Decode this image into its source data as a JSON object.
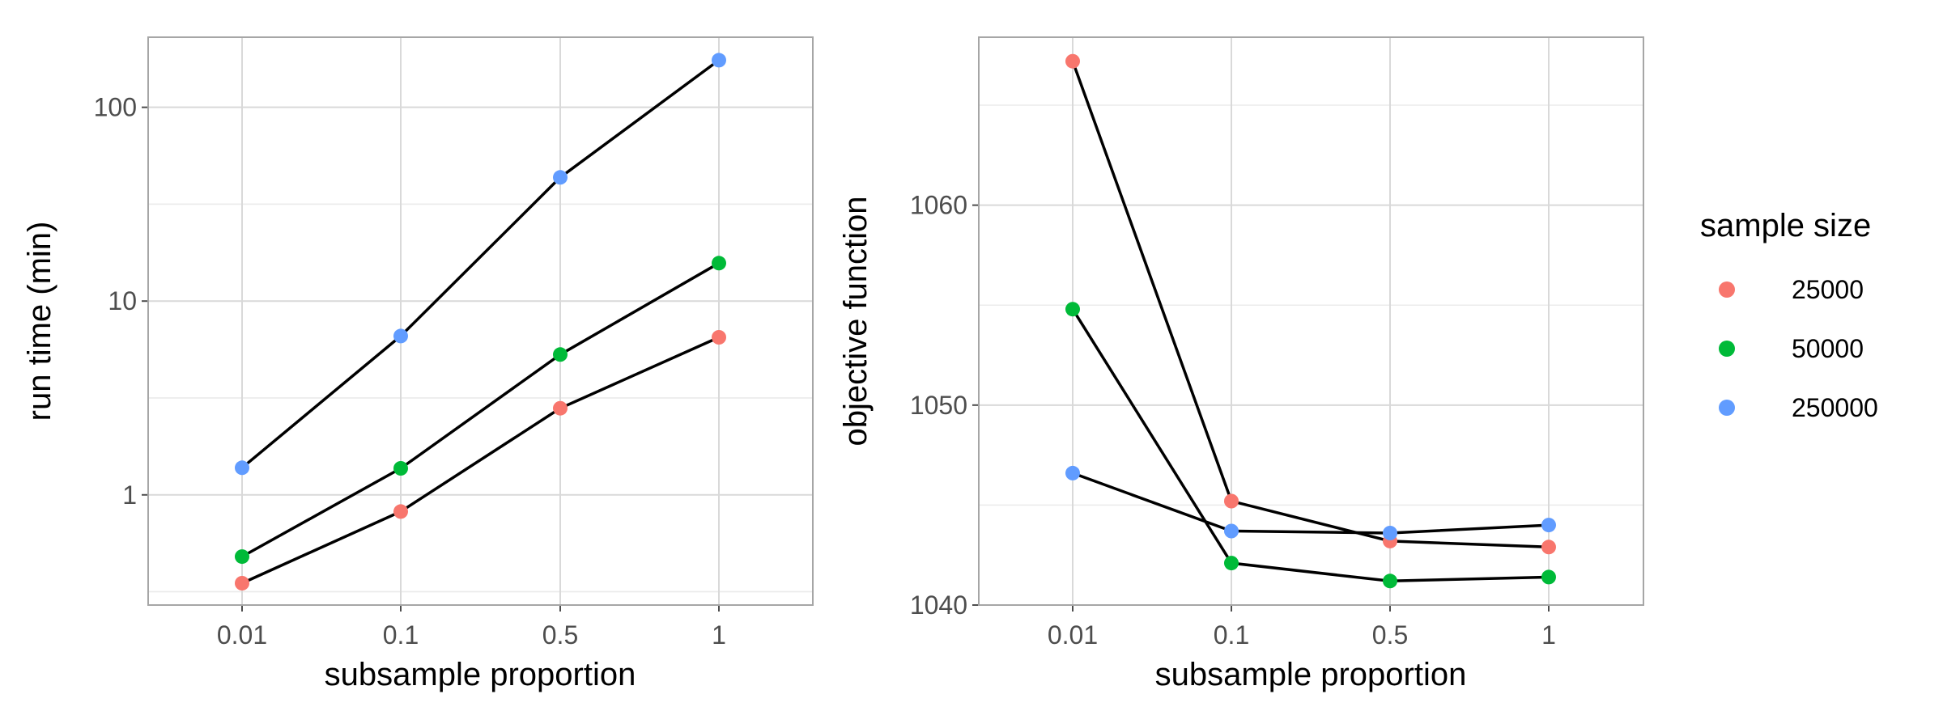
{
  "chart_data": [
    {
      "type": "line",
      "xlabel": "subsample proportion",
      "ylabel": "run time (min)",
      "y_scale": "log10",
      "ylim": [
        0.27,
        230
      ],
      "x": [
        "0.01",
        "0.1",
        "0.5",
        "1"
      ],
      "yticks": [
        1,
        10,
        100
      ],
      "ytick_labels": [
        "1",
        "10",
        "100"
      ],
      "grid": true,
      "series": [
        {
          "name": "25000",
          "values": [
            0.35,
            0.82,
            2.8,
            6.5
          ]
        },
        {
          "name": "50000",
          "values": [
            0.48,
            1.37,
            5.3,
            15.7
          ]
        },
        {
          "name": "250000",
          "values": [
            1.38,
            6.6,
            43.5,
            175
          ]
        }
      ]
    },
    {
      "type": "line",
      "xlabel": "subsample proportion",
      "ylabel": "objective function",
      "y_scale": "linear",
      "ylim": [
        1040,
        1068.4
      ],
      "x": [
        "0.01",
        "0.1",
        "0.5",
        "1"
      ],
      "yticks": [
        1040,
        1050,
        1060
      ],
      "ytick_labels": [
        "1040",
        "1050",
        "1060"
      ],
      "grid": true,
      "series": [
        {
          "name": "25000",
          "values": [
            1067.2,
            1045.2,
            1043.2,
            1042.9
          ]
        },
        {
          "name": "50000",
          "values": [
            1054.8,
            1042.1,
            1041.2,
            1041.4
          ]
        },
        {
          "name": "250000",
          "values": [
            1046.6,
            1043.7,
            1043.6,
            1044.0
          ]
        }
      ]
    }
  ],
  "legend": {
    "title": "sample size",
    "placement": "right",
    "items": [
      {
        "label": "25000",
        "color": "#F8766D"
      },
      {
        "label": "50000",
        "color": "#00BA38"
      },
      {
        "label": "250000",
        "color": "#619CFF"
      }
    ]
  },
  "colors": {
    "grid_major": "#d9d9d9",
    "grid_minor": "#ebebeb",
    "panel_border": "#a6a6a6",
    "line": "#000000"
  }
}
